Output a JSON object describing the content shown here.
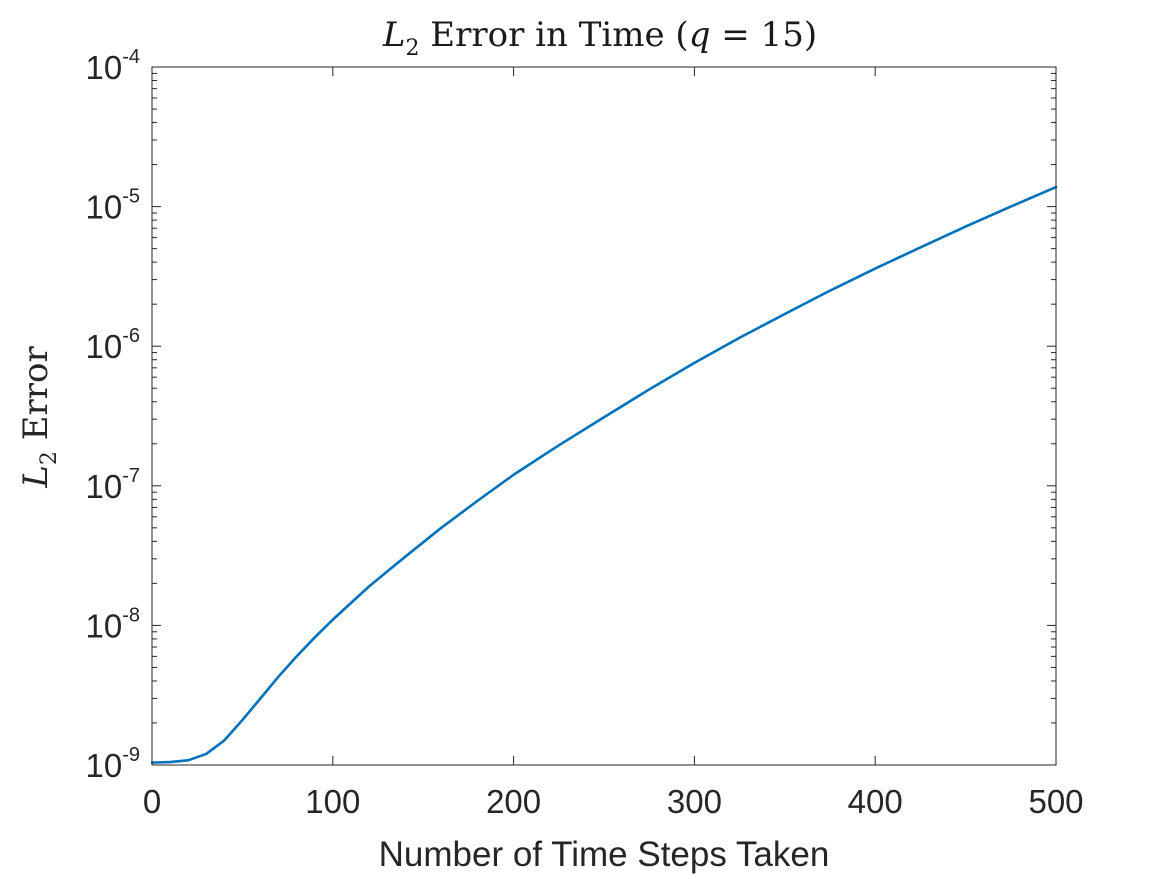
{
  "chart_data": {
    "type": "line",
    "title_parts": {
      "l": "L",
      "sub": "2",
      "mid": " Error in Time (",
      "q": "q",
      "eq": " = 15)"
    },
    "ylabel_parts": {
      "l": "L",
      "sub": "2",
      "rest": " Error"
    },
    "xlabel": "Number of Time Steps Taken",
    "xlim": [
      0,
      500
    ],
    "ylim": [
      1e-09,
      0.0001
    ],
    "yscale": "log",
    "xticks": [
      0,
      100,
      200,
      300,
      400,
      500
    ],
    "xtick_labels": [
      "0",
      "100",
      "200",
      "300",
      "400",
      "500"
    ],
    "yticks": [
      {
        "value": 1e-09,
        "base": "10",
        "exp": "-9"
      },
      {
        "value": 1e-08,
        "base": "10",
        "exp": "-8"
      },
      {
        "value": 1e-07,
        "base": "10",
        "exp": "-7"
      },
      {
        "value": 1e-06,
        "base": "10",
        "exp": "-6"
      },
      {
        "value": 1e-05,
        "base": "10",
        "exp": "-5"
      },
      {
        "value": 0.0001,
        "base": "10",
        "exp": "-4"
      }
    ],
    "grid": false,
    "series": [
      {
        "color": "#0072BD",
        "x": [
          0,
          10,
          20,
          30,
          40,
          50,
          60,
          70,
          80,
          90,
          100,
          120,
          140,
          160,
          180,
          200,
          225,
          250,
          275,
          300,
          325,
          350,
          375,
          400,
          425,
          450,
          475,
          500
        ],
        "y": [
          1.04e-09,
          1.05e-09,
          1.08e-09,
          1.2e-09,
          1.5e-09,
          2.1e-09,
          3e-09,
          4.3e-09,
          6e-09,
          8.2e-09,
          1.1e-08,
          1.9e-08,
          3.1e-08,
          5e-08,
          7.8e-08,
          1.2e-07,
          1.95e-07,
          3.1e-07,
          4.9e-07,
          7.6e-07,
          1.15e-06,
          1.7e-06,
          2.5e-06,
          3.6e-06,
          5.1e-06,
          7.2e-06,
          1e-05,
          1.38e-05
        ]
      }
    ]
  }
}
